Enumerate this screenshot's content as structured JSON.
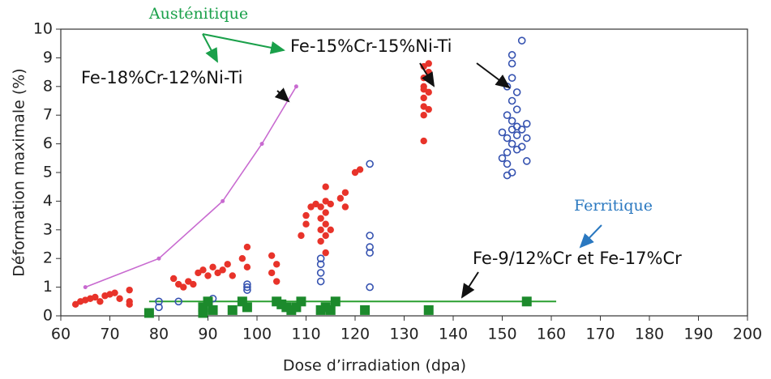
{
  "chart_data": {
    "type": "scatter",
    "xlabel": "Dose d’irradiation (dpa)",
    "ylabel": "Déformation maximale (%)",
    "xlim": [
      60,
      200
    ],
    "xticks": [
      60,
      70,
      80,
      90,
      100,
      110,
      120,
      130,
      140,
      150,
      160,
      170,
      180,
      190,
      200
    ],
    "ylim": [
      0,
      10
    ],
    "yticks": [
      0,
      1,
      2,
      3,
      4,
      5,
      6,
      7,
      8,
      9,
      10
    ],
    "annotations": [
      "Austénitique",
      "Fe-15%Cr-15%Ni-Ti",
      "Fe-18%Cr-12%Ni-Ti",
      "Ferritique",
      "Fe-9/12%Cr et Fe-17%Cr"
    ],
    "series": [
      {
        "marker": "line-dot",
        "color": "#c86ad0",
        "x": [
          65,
          80,
          93,
          101,
          108
        ],
        "values": [
          1,
          2,
          4,
          6,
          8
        ]
      },
      {
        "marker": "line",
        "color": "#2aa030",
        "x": [
          78,
          161
        ],
        "values": [
          0.5,
          0.5
        ]
      },
      {
        "marker": "circle-filled",
        "color": "#e8332a",
        "x": [
          63,
          64,
          65,
          66,
          67,
          68,
          69,
          70,
          71,
          72,
          74,
          74,
          74,
          83,
          84,
          85,
          86,
          87,
          88,
          89,
          90,
          91,
          92,
          93,
          94,
          95,
          97,
          98,
          98,
          103,
          103,
          104,
          104,
          109,
          110,
          110,
          111,
          112,
          113,
          113,
          113,
          113,
          114,
          114,
          114,
          114,
          114,
          114,
          115,
          115,
          117,
          118,
          118,
          120,
          121,
          134,
          134,
          134,
          134,
          134,
          134,
          134,
          135,
          135,
          135,
          135,
          134
        ],
        "values": [
          0.4,
          0.5,
          0.55,
          0.6,
          0.65,
          0.5,
          0.7,
          0.75,
          0.8,
          0.6,
          0.9,
          0.5,
          0.4,
          1.3,
          1.1,
          1.0,
          1.2,
          1.1,
          1.5,
          1.6,
          1.4,
          1.7,
          1.5,
          1.6,
          1.8,
          1.4,
          2.0,
          2.4,
          1.7,
          2.1,
          1.5,
          1.8,
          1.2,
          2.8,
          3.2,
          3.5,
          3.8,
          3.9,
          2.6,
          3.0,
          3.4,
          3.8,
          2.2,
          2.8,
          3.2,
          3.6,
          4.0,
          4.5,
          3.0,
          3.9,
          4.1,
          4.3,
          3.8,
          5.0,
          5.1,
          6.1,
          7.0,
          7.3,
          7.6,
          8.0,
          8.3,
          8.7,
          7.2,
          7.8,
          8.5,
          8.8,
          7.9
        ]
      },
      {
        "marker": "circle-open",
        "color": "#3552b0",
        "x": [
          80,
          80,
          84,
          90,
          91,
          98,
          98,
          98,
          113,
          113,
          113,
          113,
          123,
          123,
          123,
          123,
          123,
          152,
          152,
          154,
          151,
          152,
          153,
          151,
          152,
          153,
          154,
          155,
          151,
          152,
          153,
          150,
          151,
          152,
          151,
          154,
          155,
          153,
          150,
          152,
          155,
          151,
          153,
          152
        ],
        "values": [
          0.3,
          0.5,
          0.5,
          0.5,
          0.6,
          0.9,
          1.0,
          1.1,
          1.2,
          1.5,
          1.8,
          2.0,
          1.0,
          2.2,
          2.4,
          2.8,
          5.3,
          9.1,
          8.8,
          9.6,
          8.0,
          7.5,
          7.2,
          7.0,
          6.8,
          6.6,
          6.5,
          6.7,
          6.2,
          6.0,
          5.8,
          5.5,
          5.3,
          5.0,
          4.9,
          5.9,
          5.4,
          6.3,
          6.4,
          6.5,
          6.2,
          5.7,
          7.8,
          8.3
        ]
      },
      {
        "marker": "square",
        "color": "#1c8a2c",
        "x": [
          78,
          89,
          89,
          90,
          91,
          95,
          97,
          98,
          104,
          105,
          106,
          107,
          108,
          109,
          113,
          114,
          115,
          116,
          122,
          135,
          155
        ],
        "values": [
          0.1,
          0.3,
          0.1,
          0.5,
          0.2,
          0.2,
          0.5,
          0.3,
          0.5,
          0.4,
          0.3,
          0.2,
          0.3,
          0.5,
          0.2,
          0.3,
          0.2,
          0.5,
          0.2,
          0.2,
          0.5
        ]
      }
    ]
  }
}
